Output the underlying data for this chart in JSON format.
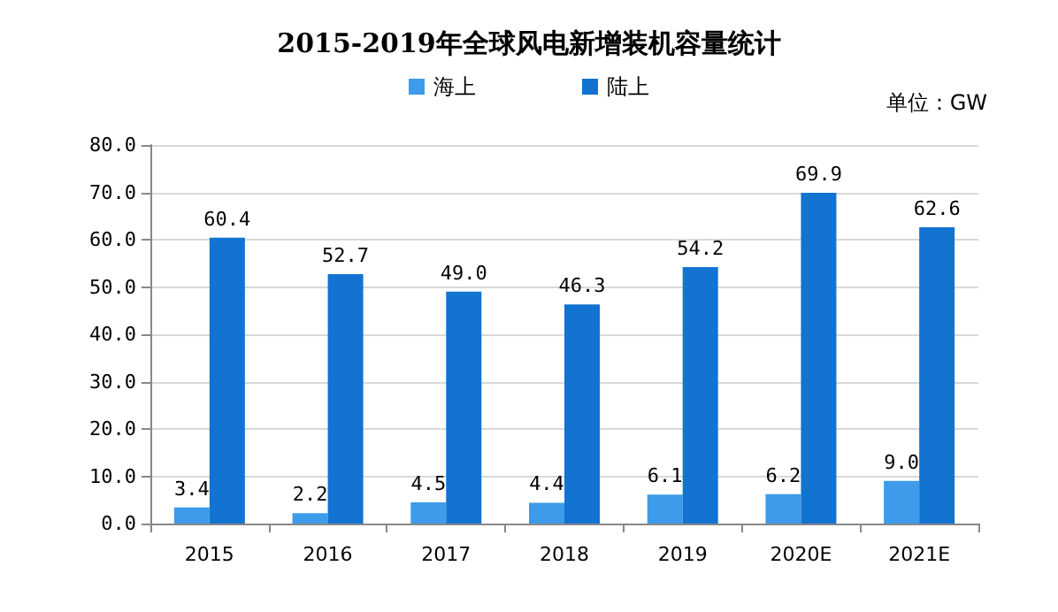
{
  "chart_data": {
    "type": "bar",
    "title": "2015-2019年全球风电新增装机容量统计",
    "annotations": [
      "单位：GW"
    ],
    "categories": [
      "2015",
      "2016",
      "2017",
      "2018",
      "2019",
      "2020E",
      "2021E"
    ],
    "series": [
      {
        "name": "海上",
        "color": "#3d9be9",
        "values": [
          3.4,
          2.2,
          4.5,
          4.4,
          6.1,
          6.2,
          9.0
        ],
        "value_labels": [
          "3.4",
          "2.2",
          "4.5",
          "4.4",
          "6.1",
          "6.2",
          "9.0"
        ]
      },
      {
        "name": "陆上",
        "color": "#1273d1",
        "values": [
          60.4,
          52.7,
          49.0,
          46.3,
          54.2,
          69.9,
          62.6
        ],
        "value_labels": [
          "60.4",
          "52.7",
          "49.0",
          "46.3",
          "54.2",
          "69.9",
          "62.6"
        ]
      }
    ],
    "ylim": [
      0,
      80
    ],
    "yticks": [
      {
        "value": 0,
        "label": "0.0"
      },
      {
        "value": 10,
        "label": "10.0"
      },
      {
        "value": 20,
        "label": "20.0"
      },
      {
        "value": 30,
        "label": "30.0"
      },
      {
        "value": 40,
        "label": "40.0"
      },
      {
        "value": 50,
        "label": "50.0"
      },
      {
        "value": 60,
        "label": "60.0"
      },
      {
        "value": 70,
        "label": "70.0"
      },
      {
        "value": 80,
        "label": "80.0"
      }
    ],
    "grid": "y",
    "legend": "top"
  }
}
